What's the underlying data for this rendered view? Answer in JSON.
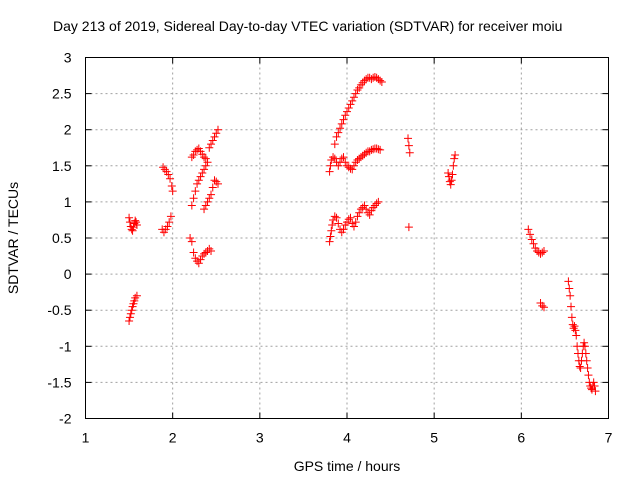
{
  "chart_data": {
    "type": "scatter",
    "title": "Day 213 of 2019, Sidereal Day-to-day VTEC variation (SDTVAR) for receiver moiu",
    "xlabel": "GPS time / hours",
    "ylabel": "SDTVAR / TECUs",
    "xlim": [
      1,
      7
    ],
    "ylim": [
      -2,
      3
    ],
    "xticks": [
      "1",
      "2",
      "3",
      "4",
      "5",
      "6",
      "7"
    ],
    "yticks": [
      "-2",
      "-1.5",
      "-1",
      "-0.5",
      "0",
      "0.5",
      "1",
      "1.5",
      "2",
      "2.5",
      "3"
    ],
    "grid": true,
    "marker": "+",
    "color": "#ff0000",
    "points": [
      [
        1.5,
        0.78
      ],
      [
        1.51,
        0.72
      ],
      [
        1.52,
        0.66
      ],
      [
        1.53,
        0.62
      ],
      [
        1.54,
        0.6
      ],
      [
        1.55,
        0.65
      ],
      [
        1.56,
        0.7
      ],
      [
        1.57,
        0.74
      ],
      [
        1.58,
        0.72
      ],
      [
        1.59,
        0.68
      ],
      [
        1.5,
        -0.65
      ],
      [
        1.51,
        -0.6
      ],
      [
        1.52,
        -0.55
      ],
      [
        1.53,
        -0.5
      ],
      [
        1.54,
        -0.45
      ],
      [
        1.55,
        -0.41
      ],
      [
        1.56,
        -0.37
      ],
      [
        1.57,
        -0.33
      ],
      [
        1.59,
        -0.3
      ],
      [
        1.88,
        0.62
      ],
      [
        1.9,
        0.58
      ],
      [
        1.92,
        0.62
      ],
      [
        1.94,
        0.66
      ],
      [
        1.96,
        0.72
      ],
      [
        1.98,
        0.8
      ],
      [
        1.89,
        1.48
      ],
      [
        1.91,
        1.45
      ],
      [
        1.93,
        1.42
      ],
      [
        1.95,
        1.38
      ],
      [
        1.97,
        1.32
      ],
      [
        1.99,
        1.22
      ],
      [
        2.0,
        1.15
      ],
      [
        2.2,
        0.5
      ],
      [
        2.22,
        0.45
      ],
      [
        2.24,
        0.3
      ],
      [
        2.26,
        0.22
      ],
      [
        2.28,
        0.18
      ],
      [
        2.3,
        0.15
      ],
      [
        2.32,
        0.2
      ],
      [
        2.34,
        0.25
      ],
      [
        2.36,
        0.28
      ],
      [
        2.38,
        0.3
      ],
      [
        2.4,
        0.32
      ],
      [
        2.42,
        0.35
      ],
      [
        2.44,
        0.32
      ],
      [
        2.22,
        0.95
      ],
      [
        2.24,
        1.05
      ],
      [
        2.26,
        1.15
      ],
      [
        2.28,
        1.25
      ],
      [
        2.3,
        1.3
      ],
      [
        2.32,
        1.35
      ],
      [
        2.34,
        1.4
      ],
      [
        2.36,
        1.45
      ],
      [
        2.38,
        1.5
      ],
      [
        2.4,
        1.55
      ],
      [
        2.22,
        1.62
      ],
      [
        2.24,
        1.65
      ],
      [
        2.26,
        1.7
      ],
      [
        2.28,
        1.72
      ],
      [
        2.3,
        1.74
      ],
      [
        2.32,
        1.7
      ],
      [
        2.34,
        1.66
      ],
      [
        2.36,
        1.62
      ],
      [
        2.38,
        1.6
      ],
      [
        2.36,
        0.9
      ],
      [
        2.38,
        0.95
      ],
      [
        2.4,
        1.0
      ],
      [
        2.42,
        1.05
      ],
      [
        2.44,
        1.1
      ],
      [
        2.46,
        1.2
      ],
      [
        2.48,
        1.3
      ],
      [
        2.5,
        1.28
      ],
      [
        2.52,
        1.25
      ],
      [
        2.42,
        1.75
      ],
      [
        2.44,
        1.8
      ],
      [
        2.46,
        1.85
      ],
      [
        2.48,
        1.9
      ],
      [
        2.5,
        1.95
      ],
      [
        2.52,
        2.0
      ],
      [
        3.8,
        0.45
      ],
      [
        3.81,
        0.52
      ],
      [
        3.82,
        0.6
      ],
      [
        3.83,
        0.68
      ],
      [
        3.84,
        0.75
      ],
      [
        3.86,
        0.8
      ],
      [
        3.88,
        0.78
      ],
      [
        3.9,
        0.7
      ],
      [
        3.92,
        0.62
      ],
      [
        3.94,
        0.58
      ],
      [
        3.96,
        0.62
      ],
      [
        3.98,
        0.68
      ],
      [
        4.0,
        0.72
      ],
      [
        4.02,
        0.76
      ],
      [
        4.04,
        0.78
      ],
      [
        4.06,
        0.7
      ],
      [
        4.08,
        0.66
      ],
      [
        4.1,
        0.72
      ],
      [
        4.12,
        0.8
      ],
      [
        4.14,
        0.85
      ],
      [
        4.16,
        0.9
      ],
      [
        4.18,
        0.92
      ],
      [
        4.2,
        0.95
      ],
      [
        4.22,
        0.9
      ],
      [
        4.24,
        0.85
      ],
      [
        4.26,
        0.82
      ],
      [
        4.28,
        0.88
      ],
      [
        4.3,
        0.92
      ],
      [
        4.32,
        0.95
      ],
      [
        4.34,
        0.98
      ],
      [
        4.36,
        1.0
      ],
      [
        3.8,
        1.42
      ],
      [
        3.81,
        1.5
      ],
      [
        3.82,
        1.58
      ],
      [
        3.84,
        1.62
      ],
      [
        3.86,
        1.6
      ],
      [
        3.88,
        1.55
      ],
      [
        3.9,
        1.5
      ],
      [
        3.92,
        1.55
      ],
      [
        3.94,
        1.6
      ],
      [
        3.96,
        1.62
      ],
      [
        3.98,
        1.55
      ],
      [
        4.0,
        1.5
      ],
      [
        4.02,
        1.48
      ],
      [
        4.04,
        1.46
      ],
      [
        4.06,
        1.45
      ],
      [
        4.08,
        1.5
      ],
      [
        4.1,
        1.55
      ],
      [
        4.12,
        1.58
      ],
      [
        4.14,
        1.6
      ],
      [
        4.16,
        1.62
      ],
      [
        4.18,
        1.64
      ],
      [
        4.2,
        1.66
      ],
      [
        4.22,
        1.68
      ],
      [
        4.24,
        1.7
      ],
      [
        4.26,
        1.7
      ],
      [
        4.28,
        1.72
      ],
      [
        4.3,
        1.73
      ],
      [
        4.32,
        1.74
      ],
      [
        4.34,
        1.74
      ],
      [
        4.36,
        1.73
      ],
      [
        4.38,
        1.72
      ],
      [
        3.86,
        1.8
      ],
      [
        3.88,
        1.9
      ],
      [
        3.9,
        1.96
      ],
      [
        3.92,
        2.02
      ],
      [
        3.94,
        2.08
      ],
      [
        3.96,
        2.14
      ],
      [
        3.98,
        2.2
      ],
      [
        4.0,
        2.25
      ],
      [
        4.02,
        2.3
      ],
      [
        4.04,
        2.35
      ],
      [
        4.06,
        2.4
      ],
      [
        4.08,
        2.45
      ],
      [
        4.1,
        2.5
      ],
      [
        4.12,
        2.55
      ],
      [
        4.14,
        2.58
      ],
      [
        4.16,
        2.62
      ],
      [
        4.18,
        2.65
      ],
      [
        4.2,
        2.68
      ],
      [
        4.22,
        2.7
      ],
      [
        4.24,
        2.72
      ],
      [
        4.26,
        2.72
      ],
      [
        4.28,
        2.7
      ],
      [
        4.3,
        2.72
      ],
      [
        4.32,
        2.73
      ],
      [
        4.34,
        2.72
      ],
      [
        4.36,
        2.7
      ],
      [
        4.38,
        2.68
      ],
      [
        4.4,
        2.66
      ],
      [
        4.7,
        1.88
      ],
      [
        4.71,
        1.78
      ],
      [
        4.72,
        1.68
      ],
      [
        4.71,
        0.65
      ],
      [
        5.16,
        1.4
      ],
      [
        5.17,
        1.35
      ],
      [
        5.18,
        1.28
      ],
      [
        5.19,
        1.24
      ],
      [
        5.2,
        1.3
      ],
      [
        5.21,
        1.38
      ],
      [
        5.22,
        1.5
      ],
      [
        5.23,
        1.6
      ],
      [
        5.24,
        1.65
      ],
      [
        6.08,
        0.62
      ],
      [
        6.1,
        0.55
      ],
      [
        6.12,
        0.48
      ],
      [
        6.14,
        0.42
      ],
      [
        6.16,
        0.36
      ],
      [
        6.18,
        0.32
      ],
      [
        6.2,
        0.3
      ],
      [
        6.22,
        0.28
      ],
      [
        6.24,
        0.3
      ],
      [
        6.26,
        0.32
      ],
      [
        6.22,
        -0.4
      ],
      [
        6.24,
        -0.44
      ],
      [
        6.26,
        -0.46
      ],
      [
        6.54,
        -0.1
      ],
      [
        6.55,
        -0.2
      ],
      [
        6.56,
        -0.3
      ],
      [
        6.57,
        -0.45
      ],
      [
        6.58,
        -0.6
      ],
      [
        6.59,
        -0.7
      ],
      [
        6.6,
        -0.75
      ],
      [
        6.61,
        -0.72
      ],
      [
        6.62,
        -0.78
      ],
      [
        6.63,
        -0.85
      ],
      [
        6.64,
        -1.0
      ],
      [
        6.65,
        -1.1
      ],
      [
        6.66,
        -1.2
      ],
      [
        6.67,
        -1.28
      ],
      [
        6.68,
        -1.3
      ],
      [
        6.69,
        -1.2
      ],
      [
        6.7,
        -1.1
      ],
      [
        6.71,
        -1.0
      ],
      [
        6.72,
        -0.95
      ],
      [
        6.73,
        -1.0
      ],
      [
        6.74,
        -1.1
      ],
      [
        6.75,
        -1.2
      ],
      [
        6.76,
        -1.3
      ],
      [
        6.77,
        -1.4
      ],
      [
        6.78,
        -1.5
      ],
      [
        6.79,
        -1.55
      ],
      [
        6.8,
        -1.58
      ],
      [
        6.81,
        -1.6
      ],
      [
        6.82,
        -1.55
      ],
      [
        6.83,
        -1.5
      ],
      [
        6.84,
        -1.55
      ],
      [
        6.85,
        -1.62
      ]
    ]
  }
}
